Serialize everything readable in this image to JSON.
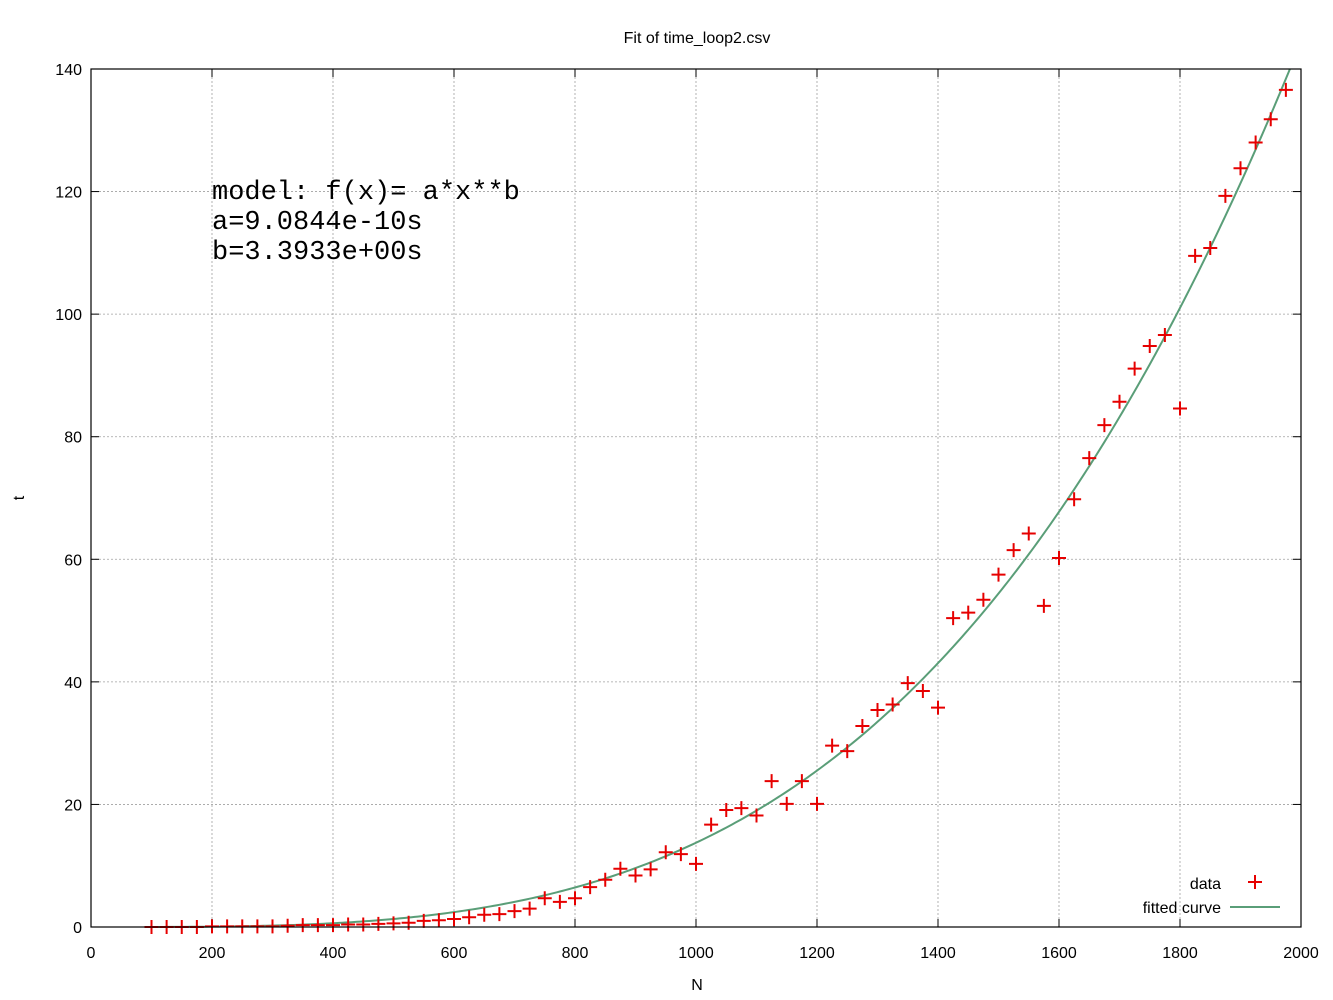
{
  "chart_data": {
    "type": "scatter",
    "title": "Fit of time_loop2.csv",
    "xlabel": "N",
    "ylabel": "t",
    "xlim": [
      0,
      2000
    ],
    "ylim": [
      0,
      140
    ],
    "x_ticks": [
      0,
      200,
      400,
      600,
      800,
      1000,
      1200,
      1400,
      1600,
      1800,
      2000
    ],
    "y_ticks": [
      0,
      20,
      40,
      60,
      80,
      100,
      120,
      140
    ],
    "grid": true,
    "legend_position": "bottom-right",
    "annotation": [
      "model: f(x)= a*x**b",
      "a=9.0844e-10s",
      "b=3.3933e+00s"
    ],
    "colors": {
      "data": "#e60000",
      "fit": "#5a9e78",
      "grid": "#a0a0a0"
    },
    "series": [
      {
        "name": "data",
        "marker": "plus",
        "x": [
          100,
          125,
          150,
          175,
          200,
          225,
          250,
          275,
          300,
          325,
          350,
          375,
          400,
          425,
          450,
          475,
          500,
          525,
          550,
          575,
          600,
          625,
          650,
          675,
          700,
          725,
          750,
          775,
          800,
          825,
          850,
          875,
          900,
          925,
          950,
          975,
          1000,
          1025,
          1050,
          1075,
          1100,
          1125,
          1150,
          1175,
          1200,
          1225,
          1250,
          1275,
          1300,
          1325,
          1350,
          1375,
          1400,
          1425,
          1450,
          1475,
          1500,
          1525,
          1550,
          1575,
          1600,
          1625,
          1650,
          1675,
          1700,
          1725,
          1750,
          1775,
          1800,
          1825,
          1850,
          1875,
          1900,
          1925,
          1950,
          1975
        ],
        "y": [
          0.0,
          0.0,
          0.0,
          0.0,
          0.1,
          0.1,
          0.1,
          0.1,
          0.1,
          0.2,
          0.3,
          0.3,
          0.3,
          0.4,
          0.4,
          0.5,
          0.6,
          0.7,
          1.0,
          1.1,
          1.3,
          1.6,
          2.0,
          2.1,
          2.6,
          3.0,
          4.7,
          4.1,
          4.7,
          6.5,
          7.7,
          9.5,
          8.4,
          9.4,
          12.2,
          11.9,
          10.3,
          16.7,
          19.1,
          19.4,
          18.2,
          23.8,
          20.1,
          23.8,
          20.1,
          29.6,
          28.7,
          32.8,
          35.4,
          36.3,
          39.8,
          38.5,
          35.8,
          50.4,
          51.3,
          53.4,
          57.5,
          61.5,
          64.2,
          52.4,
          60.2,
          69.8,
          76.5,
          81.9,
          85.7,
          91.1,
          94.8,
          96.6,
          84.6,
          109.5,
          110.8,
          119.3,
          123.8,
          128.0,
          131.8,
          136.6
        ]
      },
      {
        "name": "fitted curve",
        "type": "line",
        "function": "a*x**b",
        "a": 9.0844e-10,
        "b": 3.3933
      }
    ]
  }
}
